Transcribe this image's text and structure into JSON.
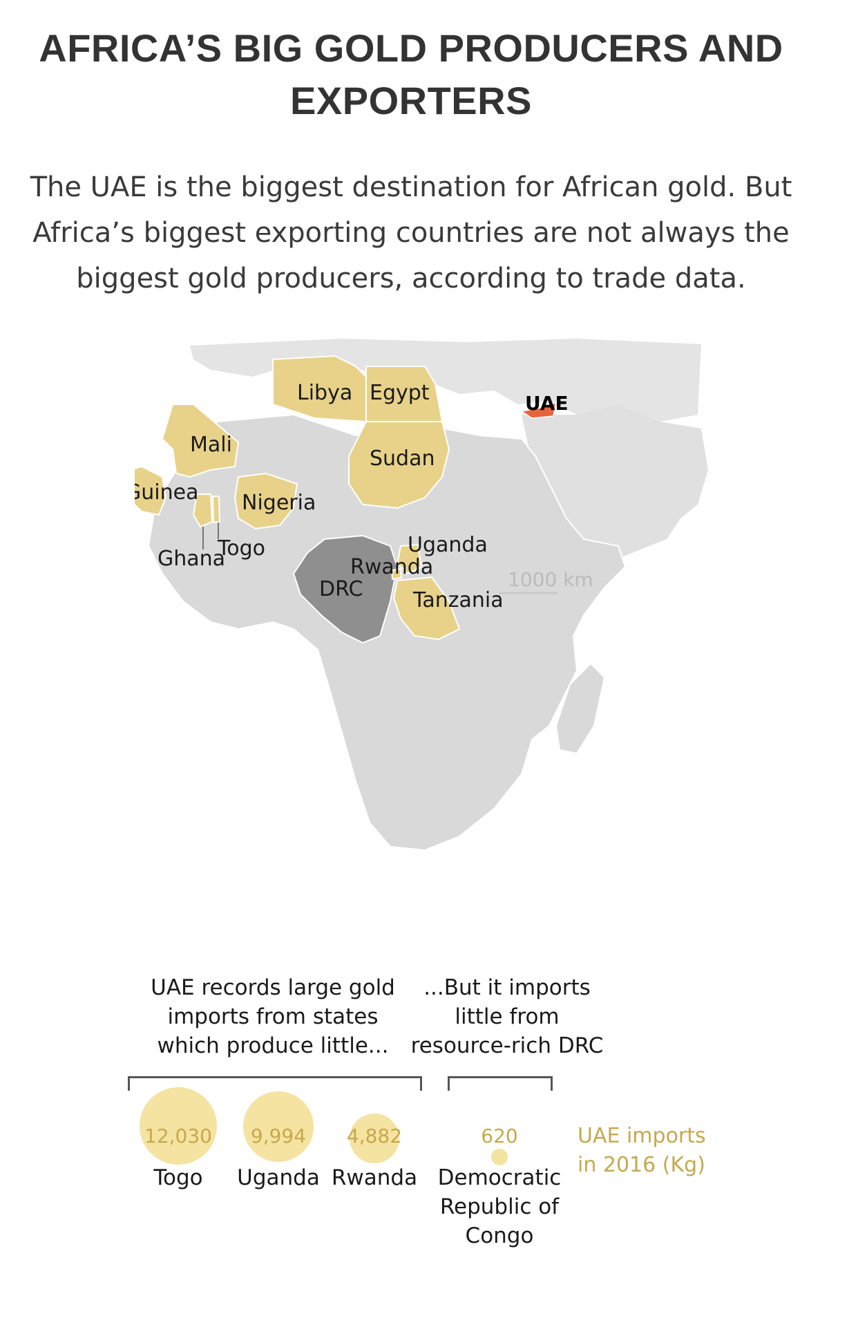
{
  "header": {
    "title": "AFRICA’S BIG GOLD PRODUCERS AND EXPORTERS",
    "subtitle": "The UAE is the biggest destination for African gold. But Africa’s biggest exporting countries are not always the biggest gold producers, according to trade data."
  },
  "map": {
    "highlight_color": "#e8d28a",
    "drc_color": "#8f8f8f",
    "uae_color": "#e8643c",
    "land_color": "#dedede",
    "labels": {
      "libya": "Libya",
      "egypt": "Egypt",
      "uae": "UAE",
      "mali": "Mali",
      "sudan": "Sudan",
      "guinea": "Guinea",
      "nigeria": "Nigeria",
      "uganda": "Uganda",
      "togo": "Togo",
      "ghana": "Ghana",
      "rwanda": "Rwanda",
      "drc": "DRC",
      "tanzania": "Tanzania"
    },
    "scale_bar": "1000 km"
  },
  "annotations": {
    "left": "UAE records large gold imports from states which produce little...",
    "right": "...But it imports little from resource-rich DRC"
  },
  "bubbles": [
    {
      "value": "12,030",
      "name": "Togo",
      "kg": 12030
    },
    {
      "value": "9,994",
      "name": "Uganda",
      "kg": 9994
    },
    {
      "value": "4,882",
      "name": "Rwanda",
      "kg": 4882
    },
    {
      "value": "620",
      "name": "Democratic Republic of Congo",
      "kg": 620
    }
  ],
  "legend": {
    "text": "UAE imports in 2016 (Kg)"
  }
}
